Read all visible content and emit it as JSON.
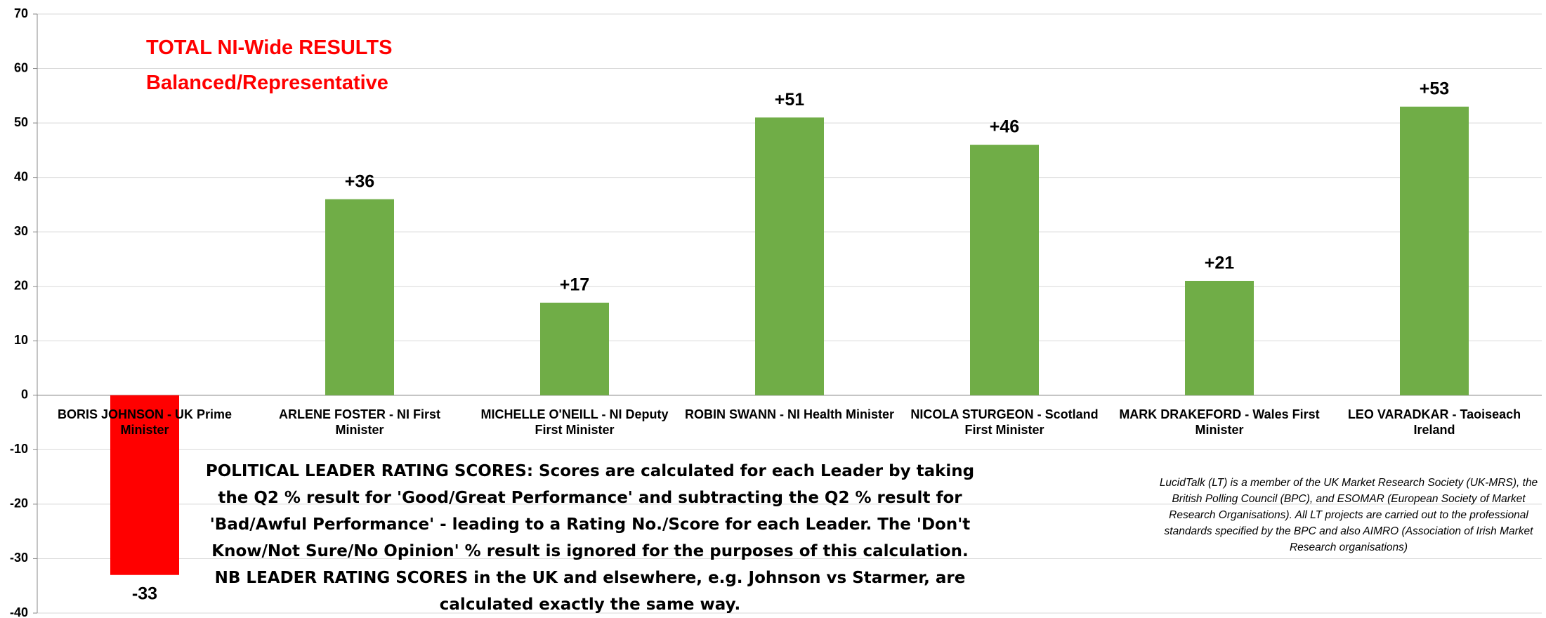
{
  "chart_data": {
    "type": "bar",
    "title": "TOTAL NI-Wide RESULTS",
    "subtitle": "Balanced/Representative",
    "categories": [
      "BORIS JOHNSON - UK Prime Minister",
      "ARLENE FOSTER - NI First Minister",
      "MICHELLE O'NEILL - NI Deputy First Minister",
      "ROBIN SWANN - NI Health Minister",
      "NICOLA STURGEON - Scotland First Minister",
      "MARK DRAKEFORD - Wales First Minister",
      "LEO VARADKAR - Taoiseach Ireland"
    ],
    "values": [
      -33,
      36,
      17,
      51,
      46,
      21,
      53
    ],
    "value_labels": [
      "-33",
      "+36",
      "+17",
      "+51",
      "+46",
      "+21",
      "+53"
    ],
    "colors": [
      "#ff0000",
      "#70ad47",
      "#70ad47",
      "#70ad47",
      "#70ad47",
      "#70ad47",
      "#70ad47"
    ],
    "ylim": [
      -40,
      70
    ],
    "yticks": [
      -40,
      -30,
      -20,
      -10,
      0,
      10,
      20,
      30,
      40,
      50,
      60,
      70
    ],
    "grid": true,
    "annotations": [
      "POLITICAL LEADER RATING SCORES: Scores are calculated for each Leader by taking the Q2 % result for 'Good/Great Performance' and subtracting the Q2 % result for 'Bad/Awful Performance' - leading to a Rating No./Score for each Leader. The 'Don't Know/Not Sure/No Opinion' % result is ignored for the purposes of this calculation. NB LEADER RATING SCORES in the UK and elsewhere, e.g. Johnson vs Starmer, are calculated exactly the same way.",
      "LucidTalk (LT) is a member of the UK Market Research Society (UK-MRS), the British Polling Council (BPC), and ESOMAR (European Society of Market Research Organisations). All LT projects are carried out to the professional standards specified by the BPC and also AIMRO (Association of Irish Market Research organisations)"
    ]
  }
}
